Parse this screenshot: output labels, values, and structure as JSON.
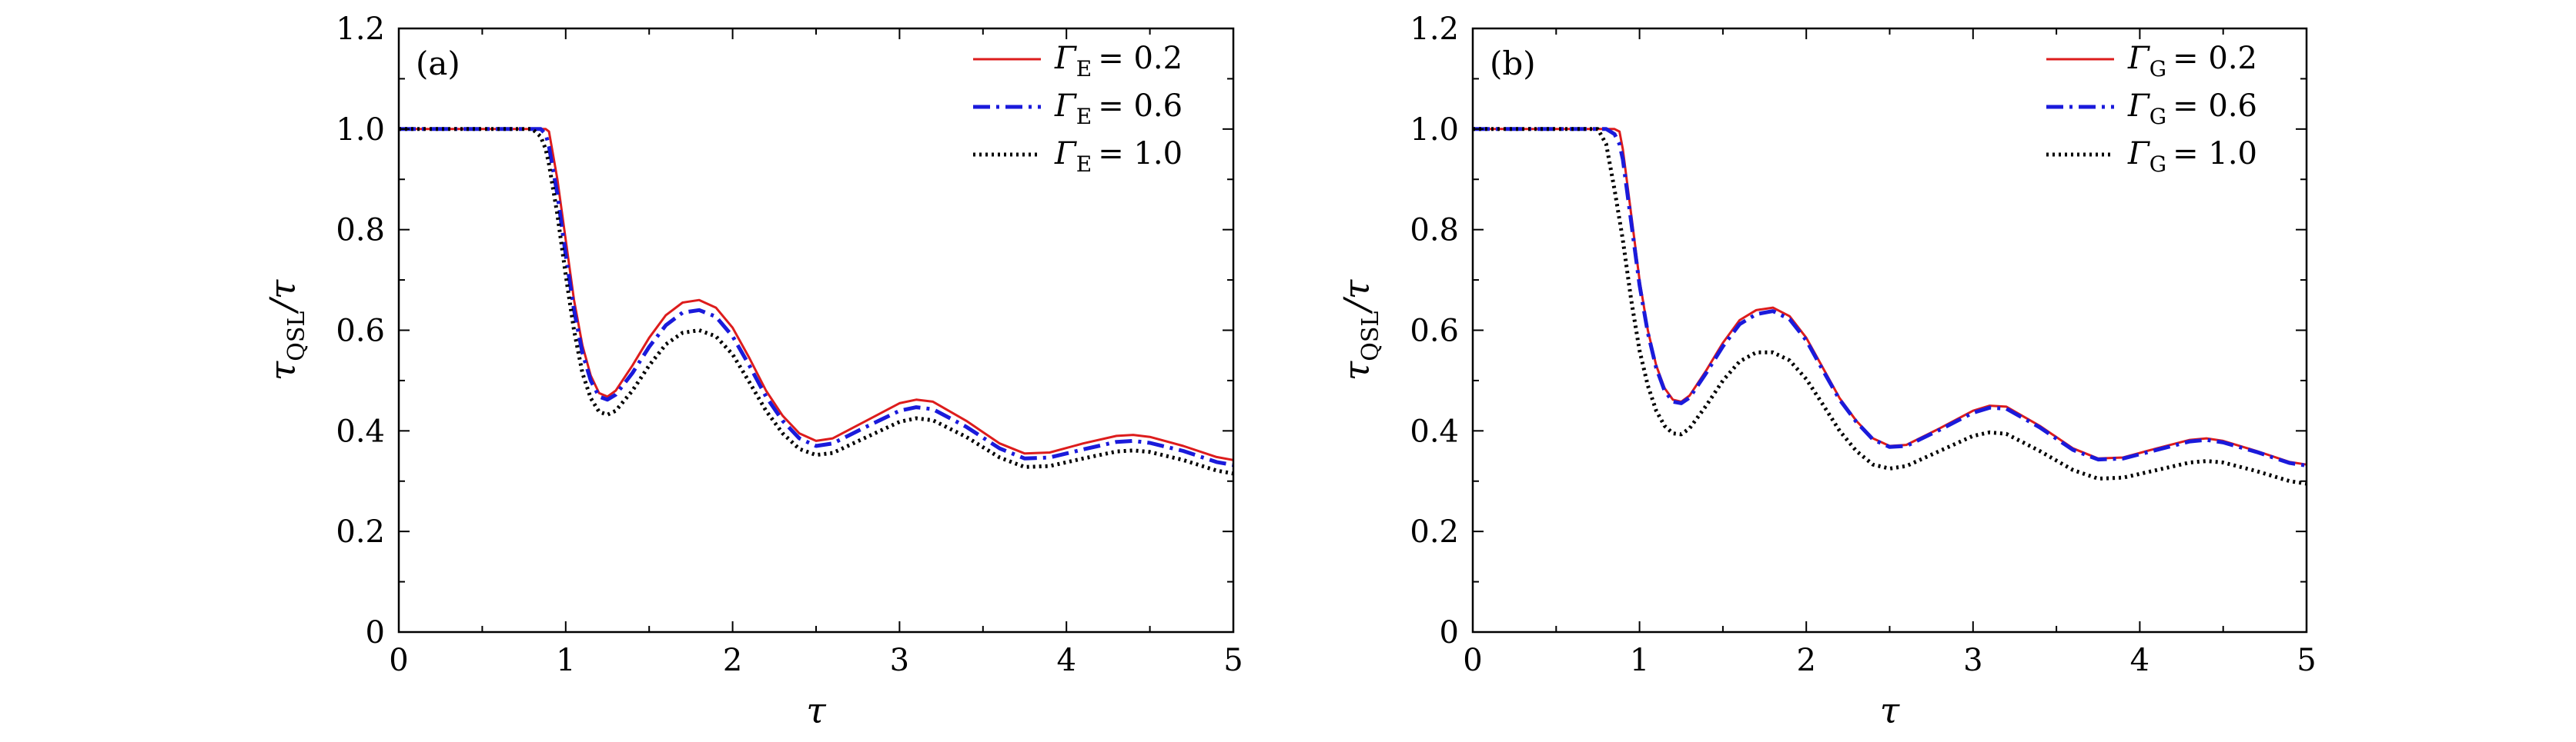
{
  "chart_data": [
    {
      "type": "line",
      "panel_label": "(a)",
      "xlabel": "τ",
      "ylabel_main": "τ",
      "ylabel_sub": "QSL",
      "ylabel_tail": "/τ",
      "xlim": [
        0,
        5
      ],
      "ylim": [
        0,
        1.2
      ],
      "xticks": [
        "0",
        "1",
        "2",
        "3",
        "4",
        "5"
      ],
      "yticks": [
        "0",
        "0.2",
        "0.4",
        "0.6",
        "0.8",
        "1.0",
        "1.2"
      ],
      "legend_position": "top-right",
      "x": [
        0,
        0.5,
        0.8,
        0.85,
        0.88,
        0.9,
        0.95,
        1.0,
        1.05,
        1.1,
        1.15,
        1.2,
        1.25,
        1.3,
        1.4,
        1.5,
        1.6,
        1.7,
        1.8,
        1.9,
        2.0,
        2.1,
        2.2,
        2.3,
        2.4,
        2.5,
        2.6,
        2.8,
        3.0,
        3.1,
        3.2,
        3.4,
        3.6,
        3.75,
        3.9,
        4.1,
        4.3,
        4.4,
        4.5,
        4.7,
        4.9,
        5.0
      ],
      "series": [
        {
          "name_sym": "Γ",
          "name_sub": "E",
          "name_val": "= 0.2",
          "color": "#dd1c1c",
          "dash": "solid",
          "values": [
            1.0,
            1.0,
            1.0,
            1.0,
            1.0,
            0.995,
            0.9,
            0.78,
            0.66,
            0.57,
            0.51,
            0.475,
            0.468,
            0.48,
            0.53,
            0.585,
            0.63,
            0.655,
            0.66,
            0.645,
            0.605,
            0.545,
            0.48,
            0.43,
            0.395,
            0.38,
            0.385,
            0.42,
            0.455,
            0.462,
            0.458,
            0.42,
            0.375,
            0.355,
            0.357,
            0.375,
            0.39,
            0.392,
            0.388,
            0.37,
            0.348,
            0.342
          ]
        },
        {
          "name_sym": "Γ",
          "name_sub": "E",
          "name_val": "= 0.6",
          "color": "#1a1adb",
          "dash": "dashdot",
          "values": [
            1.0,
            1.0,
            1.0,
            1.0,
            0.99,
            0.965,
            0.87,
            0.75,
            0.64,
            0.555,
            0.5,
            0.468,
            0.462,
            0.472,
            0.515,
            0.567,
            0.61,
            0.635,
            0.64,
            0.627,
            0.588,
            0.53,
            0.468,
            0.42,
            0.385,
            0.37,
            0.375,
            0.408,
            0.44,
            0.447,
            0.443,
            0.408,
            0.365,
            0.345,
            0.347,
            0.363,
            0.378,
            0.38,
            0.376,
            0.36,
            0.338,
            0.332
          ]
        },
        {
          "name_sym": "Γ",
          "name_sub": "E",
          "name_val": "= 1.0",
          "color": "#000000",
          "dash": "dotted",
          "values": [
            1.0,
            1.0,
            1.0,
            0.985,
            0.96,
            0.93,
            0.83,
            0.71,
            0.6,
            0.515,
            0.465,
            0.438,
            0.432,
            0.44,
            0.48,
            0.53,
            0.572,
            0.595,
            0.6,
            0.588,
            0.552,
            0.497,
            0.44,
            0.395,
            0.364,
            0.352,
            0.356,
            0.387,
            0.418,
            0.425,
            0.421,
            0.388,
            0.347,
            0.328,
            0.33,
            0.345,
            0.359,
            0.361,
            0.358,
            0.342,
            0.321,
            0.315
          ]
        }
      ]
    },
    {
      "type": "line",
      "panel_label": "(b)",
      "xlabel": "τ",
      "ylabel_main": "τ",
      "ylabel_sub": "QSL",
      "ylabel_tail": "/τ",
      "xlim": [
        0,
        5
      ],
      "ylim": [
        0,
        1.2
      ],
      "xticks": [
        "0",
        "1",
        "2",
        "3",
        "4",
        "5"
      ],
      "yticks": [
        "0",
        "0.2",
        "0.4",
        "0.6",
        "0.8",
        "1.0",
        "1.2"
      ],
      "legend_position": "top-right",
      "x": [
        0,
        0.5,
        0.75,
        0.8,
        0.85,
        0.88,
        0.9,
        0.95,
        1.0,
        1.05,
        1.1,
        1.15,
        1.2,
        1.25,
        1.3,
        1.4,
        1.5,
        1.6,
        1.7,
        1.8,
        1.9,
        2.0,
        2.1,
        2.2,
        2.3,
        2.4,
        2.5,
        2.6,
        2.8,
        3.0,
        3.1,
        3.2,
        3.4,
        3.6,
        3.75,
        3.9,
        4.1,
        4.3,
        4.4,
        4.5,
        4.7,
        4.9,
        5.0
      ],
      "series": [
        {
          "name_sym": "Γ",
          "name_sub": "G",
          "name_val": "= 0.2",
          "color": "#dd1c1c",
          "dash": "solid",
          "values": [
            1.0,
            1.0,
            1.0,
            1.0,
            1.0,
            0.995,
            0.96,
            0.83,
            0.7,
            0.6,
            0.53,
            0.485,
            0.462,
            0.458,
            0.47,
            0.52,
            0.575,
            0.62,
            0.64,
            0.645,
            0.628,
            0.585,
            0.525,
            0.465,
            0.42,
            0.385,
            0.37,
            0.372,
            0.405,
            0.44,
            0.45,
            0.448,
            0.41,
            0.365,
            0.345,
            0.347,
            0.365,
            0.382,
            0.385,
            0.38,
            0.36,
            0.338,
            0.333
          ]
        },
        {
          "name_sym": "Γ",
          "name_sub": "G",
          "name_val": "= 0.6",
          "color": "#1a1adb",
          "dash": "dashdot",
          "values": [
            1.0,
            1.0,
            1.0,
            1.0,
            0.99,
            0.97,
            0.94,
            0.815,
            0.69,
            0.595,
            0.525,
            0.48,
            0.458,
            0.455,
            0.466,
            0.515,
            0.568,
            0.612,
            0.632,
            0.638,
            0.622,
            0.58,
            0.52,
            0.462,
            0.418,
            0.383,
            0.368,
            0.37,
            0.402,
            0.436,
            0.446,
            0.444,
            0.407,
            0.362,
            0.343,
            0.345,
            0.362,
            0.379,
            0.382,
            0.377,
            0.358,
            0.336,
            0.331
          ]
        },
        {
          "name_sym": "Γ",
          "name_sub": "G",
          "name_val": "= 1.0",
          "color": "#000000",
          "dash": "dotted",
          "values": [
            1.0,
            1.0,
            1.0,
            0.97,
            0.88,
            0.82,
            0.78,
            0.66,
            0.56,
            0.49,
            0.44,
            0.41,
            0.395,
            0.393,
            0.405,
            0.45,
            0.5,
            0.538,
            0.556,
            0.556,
            0.54,
            0.503,
            0.452,
            0.4,
            0.36,
            0.333,
            0.325,
            0.33,
            0.36,
            0.39,
            0.397,
            0.394,
            0.36,
            0.322,
            0.305,
            0.307,
            0.322,
            0.337,
            0.34,
            0.337,
            0.32,
            0.3,
            0.295
          ]
        }
      ]
    }
  ]
}
